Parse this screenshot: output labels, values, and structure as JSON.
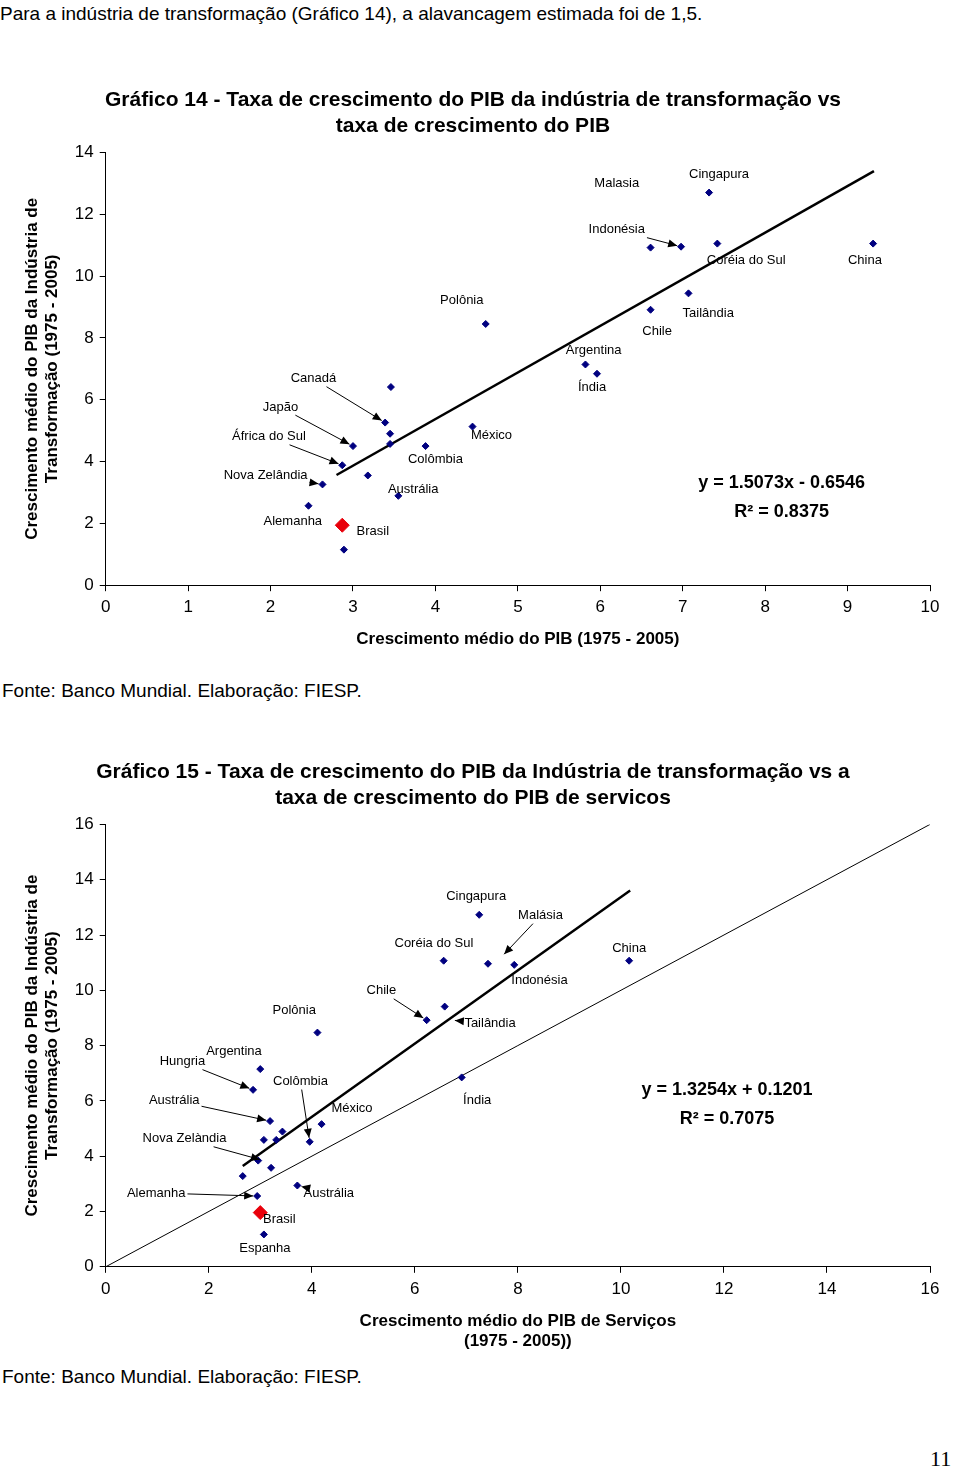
{
  "intro": "Para a indústria de transformação (Gráfico 14), a alavancagem estimada foi de 1,5.",
  "page_number": "11",
  "chart_data": [
    {
      "type": "scatter",
      "title": [
        "Gráfico 14 - Taxa de crescimento do PIB da indústria de transformação vs",
        "taxa de crescimento do PIB"
      ],
      "x_label": "Crescimento médio do PIB (1975 - 2005)",
      "y_label": [
        "Crescimento médio do PIB da Indústria de",
        "Transformação (1975 - 2005)"
      ],
      "xlim": [
        0,
        10
      ],
      "xticks": [
        0,
        1,
        2,
        3,
        4,
        5,
        6,
        7,
        8,
        9,
        10
      ],
      "ylim": [
        0,
        14
      ],
      "yticks": [
        0,
        2,
        4,
        6,
        8,
        10,
        12,
        14
      ],
      "grid": false,
      "series": [
        {
          "type": "scatter",
          "color": "#000080",
          "marker": "diamond",
          "x": [
            2.46,
            2.63,
            2.87,
            3.0,
            2.89,
            3.18,
            3.39,
            3.45,
            3.45,
            3.46,
            3.55,
            3.88,
            4.45,
            4.61,
            5.82,
            5.96,
            6.61,
            6.61,
            6.98,
            7.07,
            7.32,
            7.42,
            9.31
          ],
          "values": [
            2.57,
            3.26,
            3.88,
            4.5,
            1.15,
            3.55,
            5.26,
            4.9,
            4.57,
            6.41,
            2.89,
            4.5,
            5.13,
            8.45,
            7.14,
            6.84,
            10.92,
            8.91,
            10.95,
            9.44,
            12.7,
            11.05,
            11.05
          ]
        },
        {
          "type": "scatter",
          "color": "#e8000b",
          "marker": "large_diamond",
          "x": [
            2.87
          ],
          "values": [
            1.94
          ]
        },
        {
          "type": "line",
          "color": "#000000",
          "line_style": "thick",
          "x": [
            2.8,
            9.32
          ],
          "values": [
            3.5658,
            13.3934
          ]
        }
      ],
      "annotations": [
        {
          "text": "Malasia",
          "x": 6.2,
          "y": 13.0
        },
        {
          "text": "Cingapura",
          "x": 7.44,
          "y": 13.3
        },
        {
          "text": "Indonésia",
          "x": 6.2,
          "y": 11.5,
          "arrow_to": [
            6.98,
            10.95
          ]
        },
        {
          "text": "Coréia do Sul",
          "x": 7.77,
          "y": 10.5
        },
        {
          "text": "China",
          "x": 9.21,
          "y": 10.5
        },
        {
          "text": "Tailândia",
          "x": 7.31,
          "y": 8.8
        },
        {
          "text": "Chile",
          "x": 6.69,
          "y": 8.2
        },
        {
          "text": "Argentina",
          "x": 5.92,
          "y": 7.6
        },
        {
          "text": "Índia",
          "x": 5.9,
          "y": 6.4
        },
        {
          "text": "Polônia",
          "x": 4.32,
          "y": 9.2
        },
        {
          "text": "México",
          "x": 4.68,
          "y": 4.85
        },
        {
          "text": "Colômbia",
          "x": 4.0,
          "y": 4.08
        },
        {
          "text": "Austrália",
          "x": 3.73,
          "y": 3.1
        },
        {
          "text": "Brasil",
          "x": 3.24,
          "y": 1.75
        },
        {
          "text": "Alemanha",
          "x": 2.27,
          "y": 2.07
        },
        {
          "text": "Nova Zelândia",
          "x": 1.94,
          "y": 3.55,
          "arrow_to": [
            2.63,
            3.26
          ]
        },
        {
          "text": "África do Sul",
          "x": 1.98,
          "y": 4.8,
          "arrow_to": [
            2.87,
            3.88
          ]
        },
        {
          "text": "Japão",
          "x": 2.12,
          "y": 5.76,
          "arrow_to": [
            3.0,
            4.5
          ]
        },
        {
          "text": "Canadá",
          "x": 2.52,
          "y": 6.68,
          "arrow_to": [
            3.39,
            5.26
          ]
        }
      ],
      "equation": {
        "text": [
          "y = 1.5073x - 0.6546",
          "R² = 0.8375"
        ],
        "x": 8.2,
        "y": 3.3
      },
      "source": "Fonte: Banco Mundial. Elaboração: FIESP."
    },
    {
      "type": "scatter",
      "title": [
        "Gráfico 15 - Taxa de crescimento do PIB da Indústria de transformação vs a",
        "taxa de crescimento do PIB de servicos"
      ],
      "x_label": [
        "Crescimento médio do PIB de Serviços",
        "(1975 - 2005))"
      ],
      "y_label": [
        "Crescimento médio do PIB da Indústria de",
        "Transformação (1975 - 2005)"
      ],
      "xlim": [
        0,
        16
      ],
      "xticks": [
        0,
        2,
        4,
        6,
        8,
        10,
        12,
        14,
        16
      ],
      "ylim": [
        0,
        16
      ],
      "yticks": [
        0,
        2,
        4,
        6,
        8,
        10,
        12,
        14,
        16
      ],
      "grid": false,
      "series": [
        {
          "type": "scatter",
          "color": "#000080",
          "marker": "diamond",
          "x": [
            2.66,
            2.94,
            3.07,
            2.86,
            3.0,
            2.96,
            3.07,
            3.19,
            3.21,
            3.31,
            3.43,
            3.72,
            3.96,
            4.19,
            4.11,
            6.23,
            6.58,
            6.56,
            6.91,
            7.25,
            7.42,
            7.93,
            10.16
          ],
          "values": [
            3.28,
            2.56,
            1.17,
            6.4,
            7.15,
            3.84,
            4.59,
            5.27,
            3.58,
            4.59,
            4.89,
            2.94,
            4.52,
            5.16,
            8.47,
            8.92,
            9.41,
            11.07,
            6.85,
            12.73,
            10.96,
            10.92,
            11.07
          ]
        },
        {
          "type": "scatter",
          "color": "#e8000b",
          "marker": "large_diamond",
          "x": [
            3.0
          ],
          "values": [
            1.96
          ]
        },
        {
          "type": "line",
          "color": "#000000",
          "line_style": "thick",
          "x": [
            2.66,
            10.18
          ],
          "values": [
            3.6457,
            13.6127
          ]
        },
        {
          "type": "line",
          "color": "#000000",
          "line_style": "thin",
          "x": [
            0,
            16
          ],
          "values": [
            0,
            16
          ]
        }
      ],
      "annotations": [
        {
          "text": "Cingapura",
          "x": 7.19,
          "y": 13.4
        },
        {
          "text": "Malásia",
          "x": 8.44,
          "y": 12.7,
          "arrow_to": [
            7.68,
            11.2
          ]
        },
        {
          "text": "Coréia do Sul",
          "x": 6.37,
          "y": 11.7
        },
        {
          "text": "China",
          "x": 10.16,
          "y": 11.5
        },
        {
          "text": "Indonésia",
          "x": 8.42,
          "y": 10.35
        },
        {
          "text": "Chile",
          "x": 5.35,
          "y": 9.98,
          "arrow_to": [
            6.23,
            8.92
          ]
        },
        {
          "text": "Tailândia",
          "x": 7.46,
          "y": 8.81,
          "arrow_to": [
            6.7,
            8.92
          ]
        },
        {
          "text": "Polônia",
          "x": 3.66,
          "y": 9.26
        },
        {
          "text": "Argentina",
          "x": 2.49,
          "y": 7.79
        },
        {
          "text": "Hungria",
          "x": 1.49,
          "y": 7.42,
          "arrow_to": [
            2.86,
            6.4
          ]
        },
        {
          "text": "Colômbia",
          "x": 3.78,
          "y": 6.7,
          "arrow_to": [
            3.96,
            4.52
          ]
        },
        {
          "text": "México",
          "x": 4.78,
          "y": 5.72
        },
        {
          "text": "Austrália",
          "x": 1.33,
          "y": 6.02,
          "arrow_to": [
            3.19,
            5.27
          ]
        },
        {
          "text": "Índia",
          "x": 7.21,
          "y": 6.02
        },
        {
          "text": "Nova Zelàndia",
          "x": 1.53,
          "y": 4.63,
          "arrow_to": [
            3.07,
            3.84
          ]
        },
        {
          "text": "Austrália",
          "x": 4.33,
          "y": 2.67,
          "arrow_to": [
            3.72,
            2.94
          ]
        },
        {
          "text": "Alemanha",
          "x": 0.98,
          "y": 2.67,
          "arrow_to": [
            2.94,
            2.56
          ]
        },
        {
          "text": "Brasil",
          "x": 3.37,
          "y": 1.73
        },
        {
          "text": "Espanha",
          "x": 3.09,
          "y": 0.68
        }
      ],
      "equation": {
        "text": [
          "y = 1.3254x + 0.1201",
          "R² = 0.7075"
        ],
        "x": 12.06,
        "y": 6.4
      },
      "source": "Fonte: Banco Mundial. Elaboração: FIESP."
    }
  ]
}
